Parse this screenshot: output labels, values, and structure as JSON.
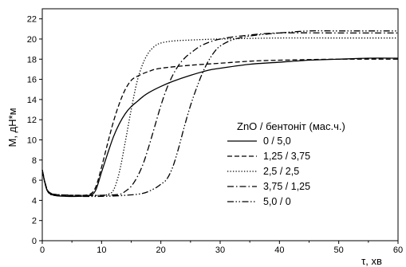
{
  "chart_data": {
    "type": "line",
    "title": "",
    "xlabel": "τ, хв",
    "ylabel": "М, дН*м",
    "xlim": [
      0,
      60
    ],
    "ylim": [
      0,
      23
    ],
    "x_ticks": [
      0,
      10,
      20,
      30,
      40,
      50,
      60
    ],
    "y_ticks": [
      0,
      2,
      4,
      6,
      8,
      10,
      12,
      14,
      16,
      18,
      20,
      22
    ],
    "x_tick_labels": [
      "0",
      "10",
      "20",
      "30",
      "40",
      "50",
      "60"
    ],
    "y_tick_labels": [
      "0",
      "2",
      "4",
      "6",
      "8",
      "10",
      "12",
      "14",
      "16",
      "18",
      "20",
      "22"
    ],
    "grid": false,
    "legend_position": "right",
    "legend_title": "ZnO / бентоніт (мас.ч.)",
    "series": [
      {
        "name": "0 / 5,0",
        "dash": "solid",
        "points": [
          [
            0,
            7.0
          ],
          [
            0.5,
            5.6
          ],
          [
            1,
            4.8
          ],
          [
            2,
            4.5
          ],
          [
            4,
            4.4
          ],
          [
            6,
            4.4
          ],
          [
            8,
            4.5
          ],
          [
            9,
            5.0
          ],
          [
            10,
            6.8
          ],
          [
            11,
            8.6
          ],
          [
            12,
            10.3
          ],
          [
            13,
            11.6
          ],
          [
            14,
            12.6
          ],
          [
            15,
            13.3
          ],
          [
            16,
            13.8
          ],
          [
            17,
            14.3
          ],
          [
            18,
            14.7
          ],
          [
            20,
            15.3
          ],
          [
            22,
            15.8
          ],
          [
            25,
            16.4
          ],
          [
            28,
            16.9
          ],
          [
            30,
            17.1
          ],
          [
            35,
            17.5
          ],
          [
            40,
            17.7
          ],
          [
            45,
            17.9
          ],
          [
            50,
            18.0
          ],
          [
            55,
            18.1
          ],
          [
            60,
            18.1
          ]
        ]
      },
      {
        "name": "1,25 / 3,75",
        "dash": "dashed",
        "points": [
          [
            0,
            7.0
          ],
          [
            0.5,
            5.6
          ],
          [
            1,
            4.9
          ],
          [
            2,
            4.6
          ],
          [
            4,
            4.5
          ],
          [
            6,
            4.5
          ],
          [
            8,
            4.6
          ],
          [
            9,
            5.3
          ],
          [
            10,
            7.3
          ],
          [
            11,
            9.6
          ],
          [
            12,
            11.8
          ],
          [
            13,
            13.6
          ],
          [
            14,
            15.0
          ],
          [
            15,
            15.9
          ],
          [
            16,
            16.3
          ],
          [
            18,
            16.8
          ],
          [
            20,
            17.1
          ],
          [
            25,
            17.4
          ],
          [
            30,
            17.6
          ],
          [
            35,
            17.8
          ],
          [
            40,
            17.9
          ],
          [
            50,
            18.0
          ],
          [
            60,
            18.0
          ]
        ]
      },
      {
        "name": "2,5 / 2,5",
        "dash": "dotted",
        "points": [
          [
            0,
            7.0
          ],
          [
            0.5,
            5.7
          ],
          [
            1,
            4.9
          ],
          [
            2,
            4.6
          ],
          [
            6,
            4.5
          ],
          [
            10,
            4.5
          ],
          [
            11,
            4.6
          ],
          [
            12,
            5.0
          ],
          [
            13,
            6.8
          ],
          [
            14,
            9.8
          ],
          [
            15,
            13.0
          ],
          [
            16,
            15.8
          ],
          [
            17,
            17.6
          ],
          [
            18,
            18.7
          ],
          [
            19,
            19.3
          ],
          [
            20,
            19.6
          ],
          [
            22,
            19.8
          ],
          [
            25,
            19.9
          ],
          [
            30,
            20.0
          ],
          [
            40,
            20.1
          ],
          [
            50,
            20.1
          ],
          [
            60,
            20.1
          ]
        ]
      },
      {
        "name": "3,75 / 1,25",
        "dash": "dashdot",
        "points": [
          [
            0,
            7.0
          ],
          [
            0.5,
            5.7
          ],
          [
            1,
            4.9
          ],
          [
            2,
            4.6
          ],
          [
            6,
            4.5
          ],
          [
            10,
            4.5
          ],
          [
            13,
            4.6
          ],
          [
            14,
            4.9
          ],
          [
            15,
            5.4
          ],
          [
            16,
            6.3
          ],
          [
            17,
            7.6
          ],
          [
            18,
            9.4
          ],
          [
            19,
            11.4
          ],
          [
            20,
            13.4
          ],
          [
            21,
            15.1
          ],
          [
            22,
            16.4
          ],
          [
            23,
            17.4
          ],
          [
            24,
            18.1
          ],
          [
            25,
            18.6
          ],
          [
            27,
            19.4
          ],
          [
            30,
            20.0
          ],
          [
            35,
            20.4
          ],
          [
            40,
            20.6
          ],
          [
            50,
            20.6
          ],
          [
            60,
            20.6
          ]
        ]
      },
      {
        "name": "5,0 / 0",
        "dash": "dashdotdot",
        "points": [
          [
            0,
            7.0
          ],
          [
            0.5,
            5.6
          ],
          [
            1,
            4.8
          ],
          [
            2,
            4.5
          ],
          [
            6,
            4.4
          ],
          [
            10,
            4.4
          ],
          [
            14,
            4.5
          ],
          [
            17,
            4.7
          ],
          [
            19,
            5.2
          ],
          [
            20,
            5.6
          ],
          [
            21,
            6.1
          ],
          [
            22,
            7.3
          ],
          [
            23,
            9.2
          ],
          [
            24,
            11.4
          ],
          [
            25,
            13.4
          ],
          [
            26,
            15.1
          ],
          [
            27,
            16.6
          ],
          [
            28,
            17.8
          ],
          [
            29,
            18.7
          ],
          [
            30,
            19.3
          ],
          [
            32,
            19.9
          ],
          [
            35,
            20.3
          ],
          [
            40,
            20.6
          ],
          [
            45,
            20.8
          ],
          [
            50,
            20.8
          ],
          [
            60,
            20.8
          ]
        ]
      }
    ]
  }
}
